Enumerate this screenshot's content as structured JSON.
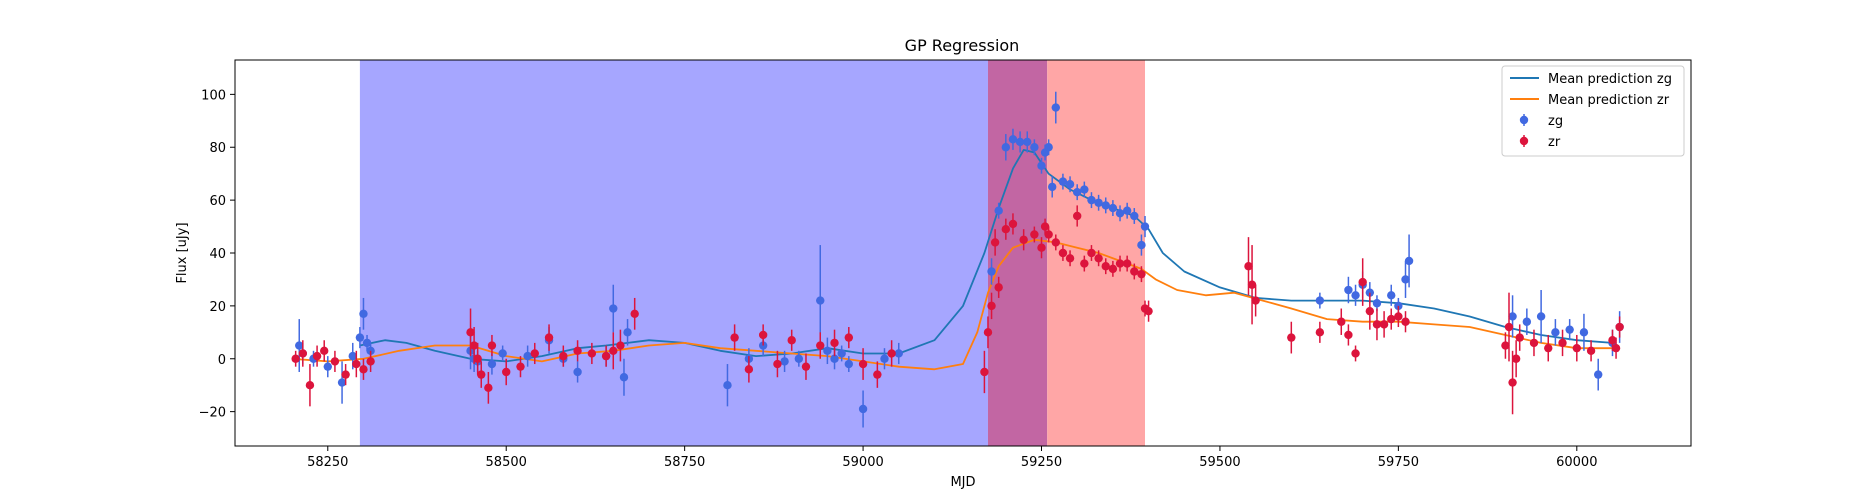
{
  "chart_data": {
    "type": "scatter",
    "title": "GP Regression",
    "xlabel": "MJD",
    "ylabel": "Flux [uJy]",
    "xlim": [
      58120,
      60160
    ],
    "ylim": [
      -33,
      113
    ],
    "xticks": [
      58250,
      58500,
      58750,
      59000,
      59250,
      59500,
      59750,
      60000
    ],
    "yticks": [
      -20,
      0,
      20,
      40,
      60,
      80,
      100
    ],
    "grid": false,
    "legend_position": "upper right",
    "shaded_regions": [
      {
        "x0": 58295,
        "x1": 59175,
        "color": "#a6a6ff"
      },
      {
        "x0": 59175,
        "x1": 59258,
        "color": "#c266a3"
      },
      {
        "x0": 59258,
        "x1": 59395,
        "color": "#ffa6a6"
      }
    ],
    "series": [
      {
        "name": "Mean prediction zg",
        "kind": "line",
        "color": "#1f77b4",
        "x": [
          58295,
          58330,
          58360,
          58400,
          58450,
          58500,
          58550,
          58600,
          58640,
          58670,
          58700,
          58750,
          58800,
          58850,
          58900,
          58950,
          59000,
          59050,
          59100,
          59140,
          59170,
          59190,
          59210,
          59225,
          59240,
          59260,
          59290,
          59320,
          59350,
          59380,
          59400,
          59420,
          59450,
          59500,
          59550,
          59600,
          59650,
          59700,
          59750,
          59800,
          59850,
          59900,
          59950,
          60000,
          60050
        ],
        "y": [
          5,
          7,
          6,
          3,
          0,
          -1,
          1,
          4,
          5,
          6,
          7,
          6,
          3,
          1,
          2,
          4,
          2,
          2,
          7,
          20,
          40,
          57,
          72,
          79,
          78,
          70,
          64,
          60,
          57,
          54,
          49,
          40,
          33,
          27,
          23,
          22,
          22,
          22,
          21,
          19,
          16,
          12,
          9,
          7,
          6
        ]
      },
      {
        "name": "Mean prediction zr",
        "kind": "line",
        "color": "#ff7f0e",
        "x": [
          58200,
          58250,
          58300,
          58350,
          58400,
          58450,
          58500,
          58550,
          58600,
          58650,
          58700,
          58750,
          58800,
          58850,
          58900,
          58950,
          59000,
          59050,
          59100,
          59140,
          59160,
          59175,
          59190,
          59210,
          59240,
          59270,
          59300,
          59330,
          59360,
          59390,
          59410,
          59440,
          59480,
          59520,
          59560,
          59600,
          59650,
          59700,
          59750,
          59800,
          59850,
          59900,
          59950,
          60000,
          60050
        ],
        "y": [
          0,
          -1,
          0,
          3,
          5,
          5,
          1,
          -1,
          2,
          3,
          5,
          6,
          4,
          3,
          2,
          1,
          -1,
          -3,
          -4,
          -2,
          10,
          25,
          35,
          42,
          45,
          44,
          42,
          40,
          37,
          34,
          30,
          26,
          24,
          25,
          22,
          19,
          15,
          14,
          14,
          13,
          12,
          9,
          6,
          4,
          4
        ]
      },
      {
        "name": "zg",
        "kind": "errorbar",
        "color": "#4169e1",
        "x": [
          58210,
          58215,
          58230,
          58250,
          58270,
          58285,
          58295,
          58300,
          58305,
          58310,
          58450,
          58455,
          58460,
          58480,
          58495,
          58530,
          58560,
          58580,
          58600,
          58640,
          58650,
          58665,
          58670,
          58810,
          58840,
          58860,
          58890,
          58910,
          58940,
          58950,
          58960,
          58970,
          58980,
          59000,
          59030,
          59050,
          59180,
          59190,
          59200,
          59210,
          59220,
          59230,
          59240,
          59250,
          59255,
          59260,
          59265,
          59270,
          59280,
          59290,
          59300,
          59310,
          59320,
          59330,
          59340,
          59350,
          59360,
          59370,
          59380,
          59390,
          59395,
          59640,
          59680,
          59690,
          59700,
          59710,
          59720,
          59740,
          59750,
          59760,
          59765,
          59910,
          59930,
          59950,
          59970,
          59990,
          60010,
          60030,
          60050,
          60060
        ],
        "y": [
          5,
          2,
          0,
          -3,
          -9,
          1,
          8,
          17,
          6,
          3,
          3,
          0,
          -1,
          -2,
          2,
          1,
          7,
          0,
          -5,
          1,
          19,
          -7,
          10,
          -10,
          0,
          5,
          -1,
          0,
          22,
          3,
          0,
          2,
          -2,
          -19,
          0,
          2,
          33,
          56,
          80,
          83,
          82,
          82,
          80,
          73,
          78,
          80,
          65,
          95,
          67,
          66,
          63,
          64,
          60,
          59,
          58,
          57,
          55,
          56,
          54,
          43,
          50,
          22,
          26,
          24,
          28,
          25,
          21,
          24,
          20,
          30,
          37,
          16,
          14,
          16,
          10,
          11,
          10,
          -6,
          6,
          12
        ],
        "err": [
          10,
          4,
          3,
          4,
          8,
          5,
          4,
          6,
          3,
          3,
          7,
          5,
          4,
          4,
          3,
          4,
          5,
          3,
          4,
          4,
          9,
          7,
          5,
          8,
          4,
          4,
          4,
          3,
          21,
          5,
          4,
          3,
          3,
          7,
          4,
          4,
          5,
          3,
          5,
          4,
          4,
          4,
          3,
          3,
          3,
          3,
          4,
          6,
          3,
          3,
          3,
          3,
          3,
          3,
          3,
          3,
          3,
          3,
          3,
          4,
          4,
          3,
          5,
          4,
          5,
          4,
          3,
          4,
          3,
          7,
          10,
          8,
          5,
          10,
          5,
          4,
          7,
          6,
          5,
          6
        ]
      },
      {
        "name": "zr",
        "kind": "errorbar",
        "color": "#dc143c",
        "x": [
          58205,
          58215,
          58225,
          58235,
          58245,
          58260,
          58275,
          58290,
          58300,
          58310,
          58450,
          58455,
          58460,
          58465,
          58475,
          58480,
          58500,
          58520,
          58540,
          58560,
          58580,
          58600,
          58620,
          58640,
          58650,
          58660,
          58680,
          58820,
          58840,
          58860,
          58880,
          58900,
          58920,
          58940,
          58960,
          58980,
          59000,
          59020,
          59040,
          59170,
          59175,
          59180,
          59185,
          59190,
          59200,
          59210,
          59225,
          59240,
          59250,
          59255,
          59260,
          59270,
          59280,
          59290,
          59300,
          59310,
          59320,
          59330,
          59340,
          59350,
          59360,
          59370,
          59380,
          59390,
          59395,
          59400,
          59540,
          59545,
          59550,
          59600,
          59640,
          59670,
          59680,
          59690,
          59700,
          59710,
          59720,
          59730,
          59740,
          59750,
          59760,
          59900,
          59905,
          59910,
          59915,
          59920,
          59940,
          59960,
          59980,
          60000,
          60020,
          60050,
          60055,
          60060
        ],
        "y": [
          0,
          2,
          -10,
          1,
          3,
          -1,
          -6,
          -2,
          -4,
          -1,
          10,
          5,
          0,
          -6,
          -11,
          5,
          -5,
          -3,
          2,
          8,
          1,
          3,
          2,
          1,
          3,
          5,
          17,
          8,
          -4,
          9,
          -2,
          7,
          -3,
          5,
          6,
          8,
          -2,
          -6,
          2,
          -5,
          10,
          20,
          44,
          27,
          49,
          51,
          45,
          47,
          42,
          50,
          47,
          44,
          40,
          38,
          54,
          36,
          40,
          38,
          35,
          34,
          36,
          36,
          33,
          32,
          19,
          18,
          35,
          28,
          22,
          8,
          10,
          14,
          9,
          2,
          29,
          18,
          13,
          13,
          15,
          16,
          14,
          5,
          12,
          -9,
          0,
          8,
          6,
          4,
          6,
          4,
          3,
          7,
          4,
          12
        ],
        "err": [
          3,
          5,
          8,
          4,
          4,
          4,
          4,
          5,
          4,
          4,
          9,
          7,
          6,
          5,
          6,
          4,
          5,
          4,
          4,
          5,
          4,
          4,
          4,
          4,
          7,
          6,
          6,
          5,
          5,
          4,
          5,
          4,
          5,
          5,
          5,
          4,
          6,
          5,
          5,
          8,
          6,
          5,
          5,
          4,
          4,
          4,
          4,
          3,
          4,
          3,
          3,
          3,
          3,
          3,
          4,
          3,
          3,
          3,
          3,
          3,
          3,
          3,
          3,
          3,
          3,
          4,
          11,
          15,
          6,
          6,
          4,
          5,
          4,
          3,
          9,
          7,
          6,
          5,
          4,
          4,
          4,
          5,
          13,
          12,
          7,
          5,
          5,
          5,
          5,
          5,
          4,
          4,
          4,
          4
        ]
      }
    ]
  }
}
